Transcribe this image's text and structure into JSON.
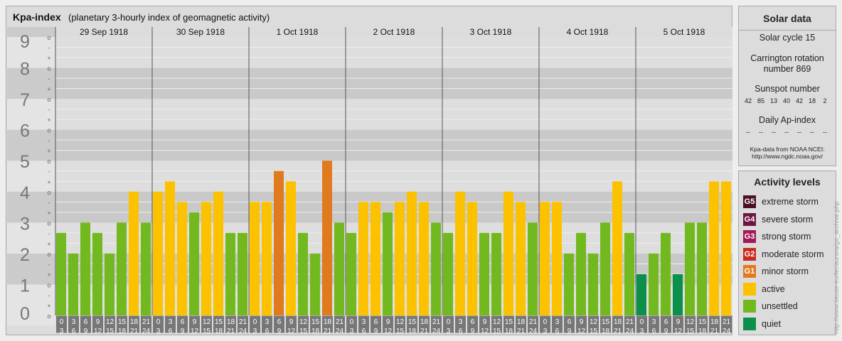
{
  "header": {
    "title": "Kpa-index",
    "subtitle": "(planetary 3-hourly index of geomagnetic activity)"
  },
  "solar": {
    "heading": "Solar data",
    "cycle": "Solar cycle 15",
    "carrington_line1": "Carrington rotation",
    "carrington_line2": "number 869",
    "sunspot_heading": "Sunspot number",
    "sunspot_values": [
      "42",
      "85",
      "13",
      "40",
      "42",
      "18",
      "2"
    ],
    "ap_heading": "Daily Ap-index",
    "ap_values": [
      "--",
      "--",
      "--",
      "--",
      "--",
      "--",
      "--"
    ],
    "credit_line1": "Kpa-data from NOAA NCEI:",
    "credit_line2": "http://www.ngdc.noaa.gov/"
  },
  "legend": {
    "heading": "Activity levels",
    "items": [
      {
        "badge": "G5",
        "label": "extreme storm",
        "color": "#4d0f24"
      },
      {
        "badge": "G4",
        "label": "severe storm",
        "color": "#6e1441"
      },
      {
        "badge": "G3",
        "label": "strong storm",
        "color": "#a5175a"
      },
      {
        "badge": "G2",
        "label": "moderate storm",
        "color": "#cc2c1c"
      },
      {
        "badge": "G1",
        "label": "minor storm",
        "color": "#e07a1e"
      },
      {
        "badge": "",
        "label": "active",
        "color": "#fcc200"
      },
      {
        "badge": "",
        "label": "unsettled",
        "color": "#72b91f"
      },
      {
        "badge": "",
        "label": "quiet",
        "color": "#0b8f4a"
      }
    ]
  },
  "watermark": "http://www.tieuse-eu/fer/aurora/go_archive.php",
  "chart_data": {
    "type": "bar",
    "ylim": [
      0,
      9
    ],
    "y_ticks": [
      "0",
      "1",
      "2",
      "3",
      "4",
      "5",
      "6",
      "7",
      "8",
      "9"
    ],
    "sub_ticks": [
      "+",
      "o",
      "-"
    ],
    "days": [
      "29 Sep 1918",
      "30 Sep 1918",
      "1 Oct 1918",
      "2 Oct 1918",
      "3 Oct 1918",
      "4 Oct 1918",
      "5 Oct 1918"
    ],
    "interval_start": [
      "0",
      "3",
      "6",
      "9",
      "12",
      "15",
      "18",
      "21"
    ],
    "interval_end": [
      "3",
      "6",
      "9",
      "12",
      "15",
      "18",
      "21",
      "24"
    ],
    "values": [
      [
        2.667,
        2.0,
        3.0,
        2.667,
        2.0,
        3.0,
        4.0,
        3.0
      ],
      [
        4.0,
        4.333,
        3.667,
        3.333,
        3.667,
        4.0,
        2.667,
        2.667
      ],
      [
        3.667,
        3.667,
        4.667,
        4.333,
        2.667,
        2.0,
        5.0,
        3.0
      ],
      [
        2.667,
        3.667,
        3.667,
        3.333,
        3.667,
        4.0,
        3.667,
        3.0
      ],
      [
        2.667,
        4.0,
        3.667,
        2.667,
        2.667,
        4.0,
        3.667,
        3.0
      ],
      [
        3.667,
        3.667,
        2.0,
        2.667,
        2.0,
        3.0,
        4.333,
        2.667
      ],
      [
        1.333,
        2.0,
        2.667,
        1.333,
        3.0,
        3.0,
        4.333,
        4.333
      ]
    ]
  }
}
